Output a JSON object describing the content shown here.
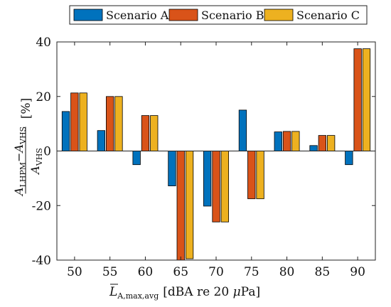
{
  "chart_data": {
    "type": "bar",
    "categories": [
      "50",
      "55",
      "60",
      "65",
      "70",
      "75",
      "80",
      "85",
      "90"
    ],
    "series": [
      {
        "name": "Scenario A",
        "values": [
          14.5,
          7.5,
          -5.0,
          -12.8,
          -20.2,
          15.0,
          7.0,
          2.0,
          -5.0
        ]
      },
      {
        "name": "Scenario B",
        "values": [
          21.3,
          20.0,
          13.0,
          -40.0,
          -26.0,
          -17.5,
          7.2,
          5.7,
          37.5
        ]
      },
      {
        "name": "Scenario C",
        "values": [
          21.3,
          20.0,
          13.0,
          -39.5,
          -26.0,
          -17.5,
          7.2,
          5.7,
          37.5
        ]
      }
    ],
    "colors": [
      "#0072BD",
      "#D95319",
      "#EDB120"
    ],
    "ylim": [
      -40,
      40
    ],
    "yticks": [
      "-40",
      "-20",
      "0",
      "20",
      "40"
    ],
    "legend_position": "top",
    "grid": false,
    "ylabel": {
      "numerator": "A",
      "numerator_sub": "LHPM",
      "minus": "−",
      "subtrahend": "A",
      "subtrahend_sub": "VHS",
      "denominator": "A",
      "denominator_sub": "VHS",
      "unit": "[%]"
    },
    "xlabel": {
      "symbol": "L",
      "symbol_sub": "A,max,avg",
      "unit_text": "[dBA re 20 ",
      "unit_mu": "μ",
      "unit_end": "Pa]"
    }
  }
}
